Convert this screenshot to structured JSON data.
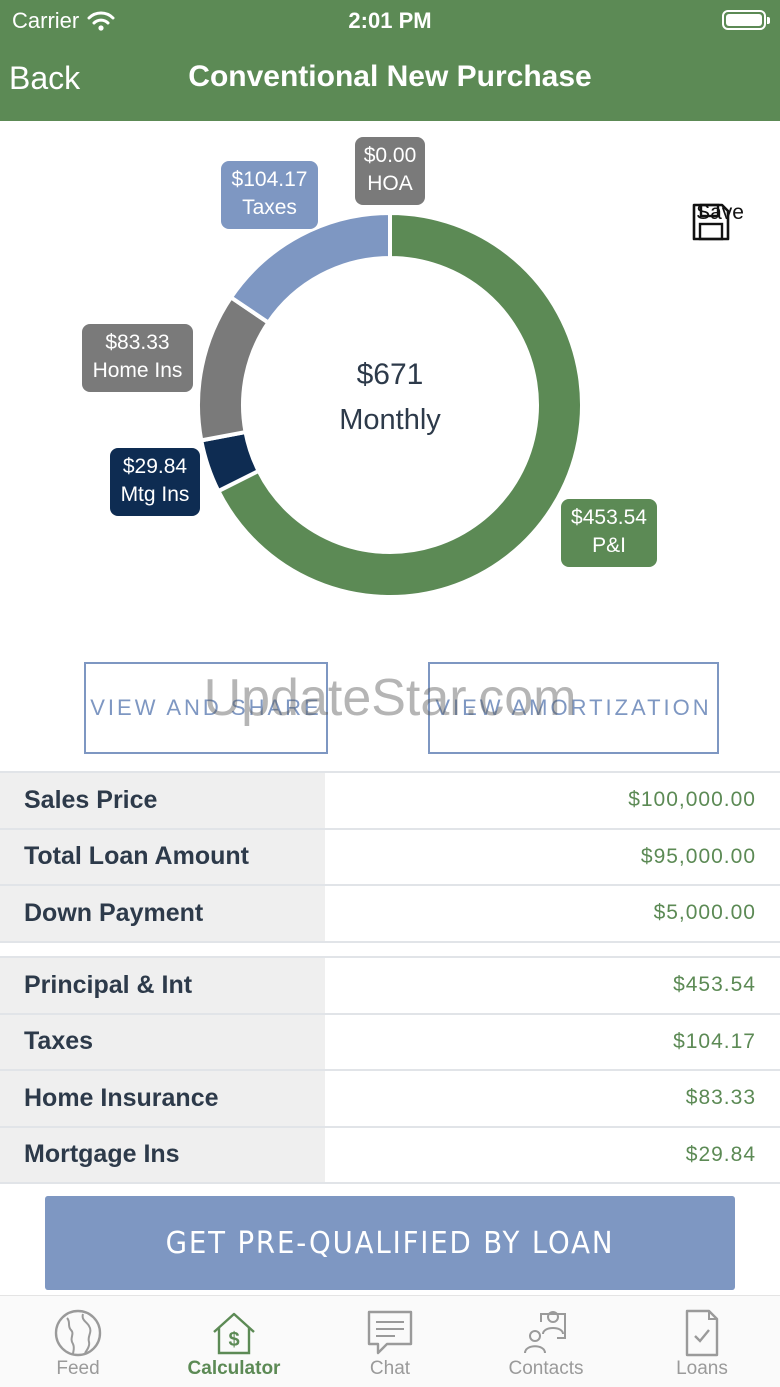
{
  "status_bar": {
    "carrier": "Carrier",
    "time": "2:01 PM"
  },
  "nav": {
    "back_label": "Back",
    "title": "Conventional New Purchase"
  },
  "chart_data": {
    "type": "pie",
    "variant": "donut",
    "center_amount": "$671",
    "center_label": "Monthly",
    "slices": [
      {
        "label": "P&I",
        "value": 453.54,
        "display": "$453.54",
        "color": "#5c8a55"
      },
      {
        "label": "Mtg Ins",
        "value": 29.84,
        "display": "$29.84",
        "color": "#0e2c52"
      },
      {
        "label": "Home Ins",
        "value": 83.33,
        "display": "$83.33",
        "color": "#7a7a7a"
      },
      {
        "label": "Taxes",
        "value": 104.17,
        "display": "$104.17",
        "color": "#7e97c2"
      },
      {
        "label": "HOA",
        "value": 0.0,
        "display": "$0.00",
        "color": "#7a7a7a"
      }
    ]
  },
  "save_label": "Save",
  "buttons": {
    "view_share": "VIEW AND SHARE",
    "view_amortization": "VIEW AMORTIZATION",
    "prequalify": "GET PRE-QUALIFIED BY LOAN"
  },
  "watermark": "UpdateStar.com",
  "loan_summary": [
    {
      "label": "Sales Price",
      "value": "$100,000.00"
    },
    {
      "label": "Total Loan Amount",
      "value": "$95,000.00"
    },
    {
      "label": "Down Payment",
      "value": "$5,000.00"
    }
  ],
  "payment_breakdown": [
    {
      "label": "Principal & Int",
      "value": "$453.54"
    },
    {
      "label": "Taxes",
      "value": "$104.17"
    },
    {
      "label": "Home Insurance",
      "value": "$83.33"
    },
    {
      "label": "Mortgage Ins",
      "value": "$29.84"
    }
  ],
  "tabs": [
    {
      "label": "Feed",
      "icon": "globe-icon",
      "active": false
    },
    {
      "label": "Calculator",
      "icon": "house-dollar-icon",
      "active": true
    },
    {
      "label": "Chat",
      "icon": "chat-bubble-icon",
      "active": false
    },
    {
      "label": "Contacts",
      "icon": "contacts-icon",
      "active": false
    },
    {
      "label": "Loans",
      "icon": "document-check-icon",
      "active": false
    }
  ],
  "colors": {
    "brand_green": "#5c8a55",
    "accent_blue": "#7e97c2",
    "navy": "#0e2c52",
    "gray": "#7a7a7a"
  }
}
